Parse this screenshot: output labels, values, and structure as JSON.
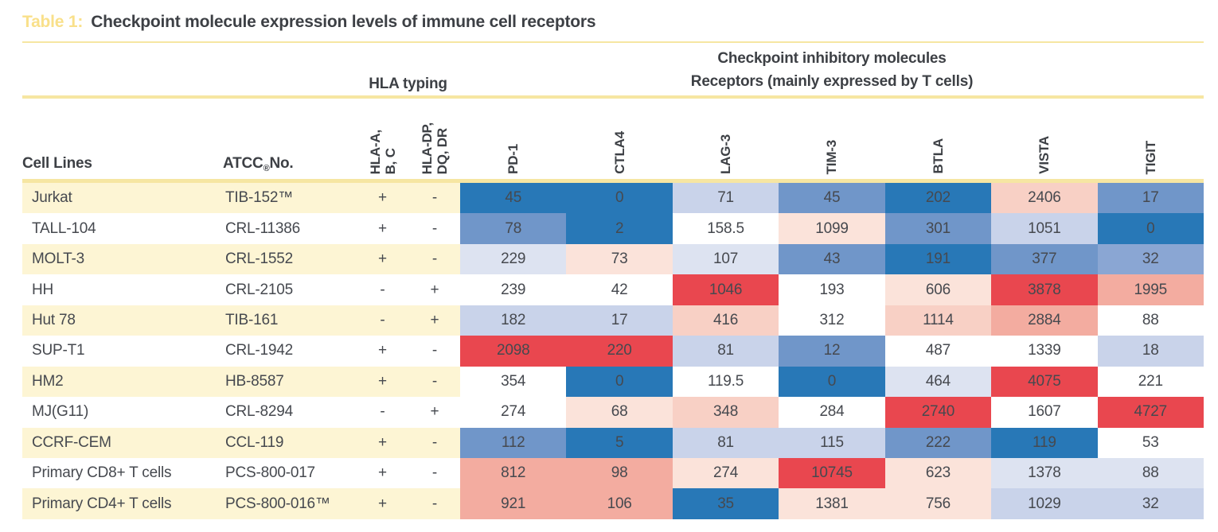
{
  "title": {
    "label": "Table 1:",
    "text": "Checkpoint molecule expression levels of immune cell receptors"
  },
  "group_headers": {
    "hla": "HLA typing",
    "checkpoint_line1": "Checkpoint inhibitory molecules",
    "checkpoint_line2": "Receptors (mainly expressed by T cells)"
  },
  "columns": {
    "cell_lines": "Cell Lines",
    "atcc_prefix": "ATCC",
    "atcc_sup": "®",
    "atcc_suffix": " No.",
    "rotated": [
      "HLA-A,\nB, C",
      "HLA-DP,\nDQ, DR",
      "PD-1",
      "CTLA4",
      "LAG-3",
      "TIM-3",
      "BTLA",
      "VISTA",
      "TIGIT"
    ]
  },
  "palette": {
    "b1": "#2878b7",
    "b2": "#7096c9",
    "b3": "#8aa6d3",
    "b4": "#c9d3ea",
    "b5": "#dde3f1",
    "w": "#ffffff",
    "p1": "#fbe3da",
    "p2": "#f8d0c5",
    "p3": "#f3aca0",
    "r1": "#e9474f"
  },
  "accent": {
    "rule_yellow": "#f6e6a2",
    "stripe_cream": "#fdf5d4",
    "title_label_yellow": "#f9e08a"
  },
  "rows": [
    {
      "cell_line": "Jurkat",
      "atcc": "TIB-152™",
      "hla_abc": "+",
      "hla_dpdqdr": "-",
      "values": [
        45,
        0,
        71,
        45,
        202,
        2406,
        17
      ],
      "colors": [
        "b1",
        "b1",
        "b4",
        "b2",
        "b1",
        "p2",
        "b2"
      ]
    },
    {
      "cell_line": "TALL-104",
      "atcc": "CRL-11386",
      "hla_abc": "+",
      "hla_dpdqdr": "-",
      "values": [
        78,
        2,
        158.5,
        1099,
        301,
        1051,
        0
      ],
      "colors": [
        "b2",
        "b1",
        "w",
        "p1",
        "b2",
        "b4",
        "b1"
      ]
    },
    {
      "cell_line": "MOLT-3",
      "atcc": "CRL-1552",
      "hla_abc": "+",
      "hla_dpdqdr": "-",
      "values": [
        229,
        73,
        107,
        43,
        191,
        377,
        32
      ],
      "colors": [
        "b5",
        "p1",
        "b5",
        "b2",
        "b1",
        "b2",
        "b3"
      ]
    },
    {
      "cell_line": "HH",
      "atcc": "CRL-2105",
      "hla_abc": "-",
      "hla_dpdqdr": "+",
      "values": [
        239,
        42,
        1046,
        193,
        606,
        3878,
        1995
      ],
      "colors": [
        "w",
        "w",
        "r1",
        "w",
        "p1",
        "r1",
        "p3"
      ]
    },
    {
      "cell_line": "Hut 78",
      "atcc": "TIB-161",
      "hla_abc": "-",
      "hla_dpdqdr": "+",
      "values": [
        182,
        17,
        416,
        312,
        1114,
        2884,
        88
      ],
      "colors": [
        "b4",
        "b4",
        "p2",
        "w",
        "p2",
        "p3",
        "w"
      ]
    },
    {
      "cell_line": "SUP-T1",
      "atcc": "CRL-1942",
      "hla_abc": "+",
      "hla_dpdqdr": "-",
      "values": [
        2098,
        220,
        81,
        12,
        487,
        1339,
        18
      ],
      "colors": [
        "r1",
        "r1",
        "b4",
        "b2",
        "w",
        "w",
        "b4"
      ]
    },
    {
      "cell_line": "HM2",
      "atcc": "HB-8587",
      "hla_abc": "+",
      "hla_dpdqdr": "-",
      "values": [
        354,
        0,
        119.5,
        0,
        464,
        4075,
        221
      ],
      "colors": [
        "w",
        "b1",
        "w",
        "b1",
        "b5",
        "r1",
        "w"
      ]
    },
    {
      "cell_line": "MJ(G11)",
      "atcc": "CRL-8294",
      "hla_abc": "-",
      "hla_dpdqdr": "+",
      "values": [
        274,
        68,
        348,
        284,
        2740,
        1607,
        4727
      ],
      "colors": [
        "w",
        "p1",
        "p2",
        "w",
        "r1",
        "w",
        "r1"
      ]
    },
    {
      "cell_line": "CCRF-CEM",
      "atcc": "CCL-119",
      "hla_abc": "+",
      "hla_dpdqdr": "-",
      "values": [
        112,
        5,
        81,
        115,
        222,
        119,
        53
      ],
      "colors": [
        "b2",
        "b1",
        "b4",
        "b4",
        "b2",
        "b1",
        "w"
      ]
    },
    {
      "cell_line": "Primary CD8+ T cells",
      "atcc": "PCS-800-017",
      "hla_abc": "+",
      "hla_dpdqdr": "-",
      "values": [
        812,
        98,
        274,
        10745,
        623,
        1378,
        88
      ],
      "colors": [
        "p3",
        "p3",
        "p1",
        "r1",
        "p1",
        "b5",
        "b5"
      ]
    },
    {
      "cell_line": "Primary CD4+ T cells",
      "atcc": "PCS-800-016™",
      "hla_abc": "+",
      "hla_dpdqdr": "-",
      "values": [
        921,
        106,
        35,
        1381,
        756,
        1029,
        32
      ],
      "colors": [
        "p3",
        "p3",
        "b1",
        "p1",
        "p1",
        "b4",
        "b4"
      ]
    }
  ]
}
